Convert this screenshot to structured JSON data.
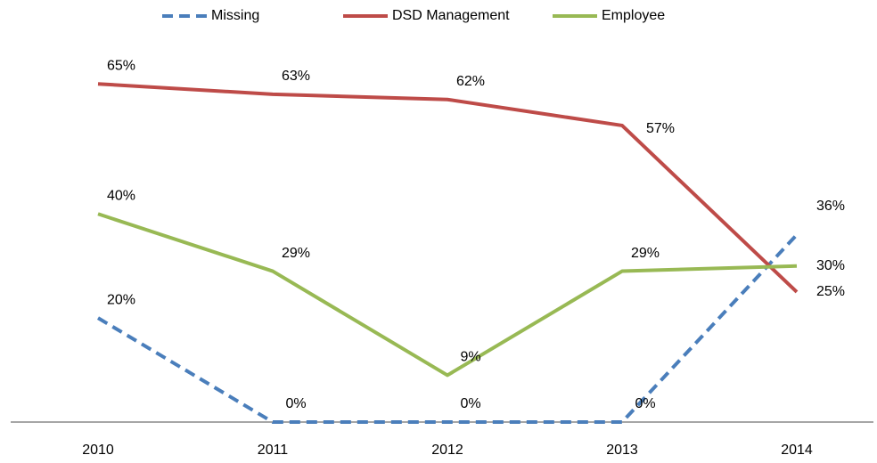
{
  "chart_data": {
    "type": "line",
    "categories": [
      "2010",
      "2011",
      "2012",
      "2013",
      "2014"
    ],
    "series": [
      {
        "name": "Missing",
        "color": "#4a7ebb",
        "dashed": true,
        "values": [
          20,
          0,
          0,
          0,
          36
        ],
        "value_labels": [
          "20%",
          "0%",
          "0%",
          "0%",
          "36%"
        ]
      },
      {
        "name": "DSD Management",
        "color": "#be4b48",
        "values": [
          65,
          63,
          62,
          57,
          25
        ],
        "value_labels": [
          "65%",
          "63%",
          "62%",
          "57%",
          "25%"
        ]
      },
      {
        "name": "Employee",
        "color": "#98b954",
        "values": [
          40,
          29,
          9,
          29,
          30
        ],
        "value_labels": [
          "40%",
          "29%",
          "9%",
          "29%",
          "30%"
        ]
      }
    ],
    "ylim": [
      0,
      70
    ],
    "legend": "top"
  }
}
